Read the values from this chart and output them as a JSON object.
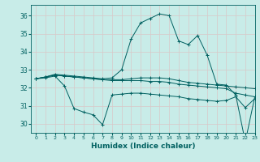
{
  "xlabel": "Humidex (Indice chaleur)",
  "bg_color": "#c8ece8",
  "line_color": "#006060",
  "grid_color": "#d8c8c8",
  "xlim": [
    -0.5,
    23
  ],
  "ylim": [
    29.5,
    36.6
  ],
  "yticks": [
    30,
    31,
    32,
    33,
    34,
    35,
    36
  ],
  "xticks": [
    0,
    1,
    2,
    3,
    4,
    5,
    6,
    7,
    8,
    9,
    10,
    11,
    12,
    13,
    14,
    15,
    16,
    17,
    18,
    19,
    20,
    21,
    22,
    23
  ],
  "series": {
    "line1_main": [
      32.5,
      32.6,
      32.75,
      32.7,
      32.65,
      32.6,
      32.55,
      32.5,
      32.55,
      33.0,
      34.7,
      35.6,
      35.85,
      36.1,
      36.0,
      34.6,
      34.4,
      34.9,
      33.8,
      32.2,
      32.15,
      31.6,
      29.0,
      31.5
    ],
    "line2_upper": [
      32.5,
      32.6,
      32.7,
      32.65,
      32.6,
      32.55,
      32.5,
      32.45,
      32.45,
      32.45,
      32.5,
      32.55,
      32.55,
      32.55,
      32.5,
      32.4,
      32.3,
      32.25,
      32.2,
      32.15,
      32.1,
      32.05,
      32.0,
      31.95
    ],
    "line3_mid": [
      32.5,
      32.6,
      32.7,
      32.65,
      32.6,
      32.55,
      32.5,
      32.45,
      32.4,
      32.4,
      32.4,
      32.4,
      32.35,
      32.35,
      32.3,
      32.2,
      32.15,
      32.1,
      32.05,
      32.0,
      31.95,
      31.7,
      31.6,
      31.5
    ],
    "line4_low": [
      32.5,
      32.55,
      32.65,
      32.1,
      30.85,
      30.65,
      30.5,
      29.95,
      31.6,
      31.65,
      31.7,
      31.7,
      31.65,
      31.6,
      31.55,
      31.5,
      31.4,
      31.35,
      31.3,
      31.25,
      31.3,
      31.5,
      30.9,
      31.4
    ]
  }
}
